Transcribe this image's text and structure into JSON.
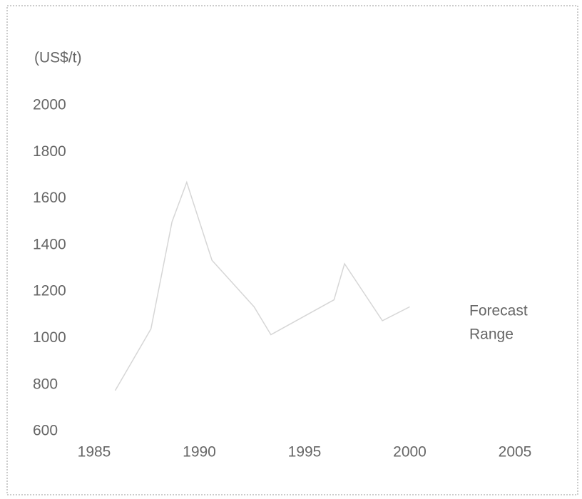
{
  "chart_data": {
    "type": "line",
    "y_unit_label": "(US$/t)",
    "annotation": [
      "Forecast",
      "Range"
    ],
    "series": [
      {
        "color": "#d6d6d6",
        "x": [
          1986,
          1987.7,
          1988.7,
          1989.4,
          1990.6,
          1992.6,
          1993.4,
          1996.4,
          1996.9,
          1998.7,
          2000
        ],
        "values": [
          775,
          1040,
          1500,
          1670,
          1335,
          1135,
          1015,
          1165,
          1320,
          1075,
          1135
        ]
      }
    ],
    "xlim": [
      1985,
      2005
    ],
    "xticks": [
      1985,
      1990,
      1995,
      2000,
      2005
    ],
    "ylim": [
      600,
      2000
    ],
    "yticks": [
      600,
      800,
      1000,
      1200,
      1400,
      1600,
      1800,
      2000
    ],
    "grid": false
  }
}
